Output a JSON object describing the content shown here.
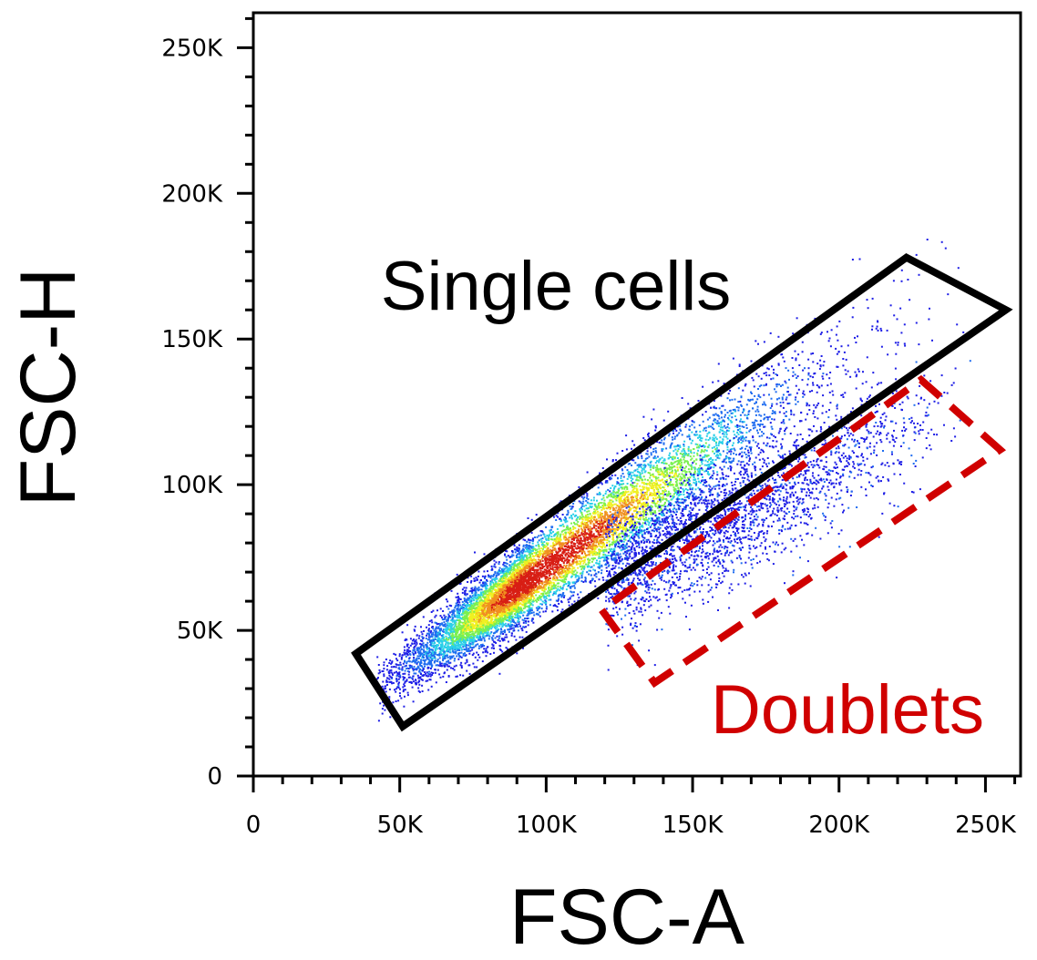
{
  "chart_data": {
    "type": "scatter",
    "title": "",
    "xlabel": "FSC-A",
    "ylabel": "FSC-H",
    "xlim": [
      0,
      262000
    ],
    "ylim": [
      0,
      262000
    ],
    "x_ticks": [
      0,
      50000,
      100000,
      150000,
      200000,
      250000
    ],
    "x_tick_labels": [
      "0",
      "50K",
      "100K",
      "150K",
      "200K",
      "250K"
    ],
    "y_ticks": [
      0,
      50000,
      100000,
      150000,
      200000,
      250000
    ],
    "y_tick_labels": [
      "0",
      "50K",
      "100K",
      "150K",
      "200K",
      "250K"
    ],
    "grid": false,
    "density_colormap": [
      "#1e1ee6",
      "#1e6cf0",
      "#2ad0e8",
      "#7af050",
      "#f0f020",
      "#f09020",
      "#d81e14"
    ],
    "populations": [
      {
        "name": "singlets",
        "x_range": [
          42000,
          245000
        ],
        "ratio_fsc_h_to_fsc_a": 0.72,
        "peak": [
          95000,
          68000
        ]
      },
      {
        "name": "doublets",
        "x_range": [
          120000,
          245000
        ],
        "ratio_fsc_h_to_fsc_a": 0.5
      }
    ],
    "gates": [
      {
        "label": "Single cells",
        "color": "#000000",
        "style": "solid",
        "polygon": [
          [
            35000,
            42000
          ],
          [
            51000,
            17000
          ],
          [
            257000,
            160000
          ],
          [
            223000,
            178000
          ]
        ]
      },
      {
        "label": "Doublets",
        "color": "#d00000",
        "style": "dashed",
        "polygon": [
          [
            119000,
            57000
          ],
          [
            137000,
            32000
          ],
          [
            255000,
            112000
          ],
          [
            228000,
            136000
          ]
        ]
      }
    ]
  }
}
